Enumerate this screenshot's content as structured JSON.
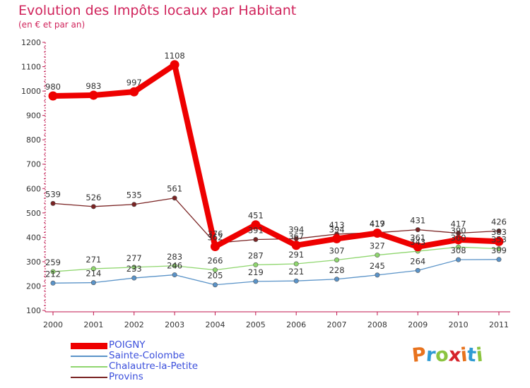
{
  "title": "Evolution des Impôts locaux par Habitant",
  "subtitle": "(en € et par an)",
  "logo": {
    "text": "Proxiti",
    "letters": [
      "P",
      "r",
      "o",
      "x",
      "i",
      "t",
      "i"
    ],
    "colors": [
      "#e8731e",
      "#2f9bd3",
      "#8bc43f",
      "#d6232a",
      "#e8731e",
      "#2f9bd3",
      "#8bc43f"
    ]
  },
  "chart_data": {
    "type": "line",
    "title": "Evolution des Impôts locaux par Habitant",
    "subtitle": "(en € et par an)",
    "xlabel": "",
    "ylabel": "",
    "ylim": [
      100,
      1200
    ],
    "yticks": [
      "100",
      "200",
      "300",
      "400",
      "500",
      "600",
      "700",
      "800",
      "900",
      "1000",
      "1100",
      "1200"
    ],
    "categories": [
      "2000",
      "2001",
      "2002",
      "2003",
      "2004",
      "2005",
      "2006",
      "2007",
      "2008",
      "2009",
      "2010",
      "2011"
    ],
    "grid": false,
    "legend": "bottom-left",
    "series": [
      {
        "name": "POIGNY",
        "color": "#ee0000",
        "emphasis": true,
        "values": [
          980,
          983,
          997,
          1108,
          362,
          451,
          367,
          394,
          417,
          361,
          390,
          383
        ],
        "labels": [
          "980",
          "983",
          "997",
          "1108",
          "362",
          "451",
          "367",
          "394",
          "417",
          "361",
          "390",
          "383"
        ]
      },
      {
        "name": "Sainte-Colombe",
        "color": "#5a93c8",
        "emphasis": false,
        "values": [
          212,
          214,
          233,
          246,
          205,
          219,
          221,
          228,
          245,
          264,
          308,
          309
        ],
        "labels": [
          "212",
          "214",
          "233",
          "246",
          "205",
          "219",
          "221",
          "228",
          "245",
          "264",
          "308",
          "309"
        ]
      },
      {
        "name": "Chalautre-la-Petite",
        "color": "#8fd66e",
        "emphasis": false,
        "values": [
          259,
          271,
          277,
          283,
          266,
          287,
          291,
          307,
          327,
          343,
          360,
          353
        ],
        "labels": [
          "259",
          "271",
          "277",
          "283",
          "266",
          "287",
          "291",
          "307",
          "327",
          "343",
          "360",
          "353"
        ]
      },
      {
        "name": "Provins",
        "color": "#7a2323",
        "emphasis": false,
        "values": [
          539,
          526,
          535,
          561,
          376,
          391,
          394,
          413,
          419,
          431,
          417,
          426
        ],
        "labels": [
          "539",
          "526",
          "535",
          "561",
          "376",
          "391",
          "394",
          "413",
          "419",
          "431",
          "417",
          "426"
        ]
      }
    ]
  }
}
